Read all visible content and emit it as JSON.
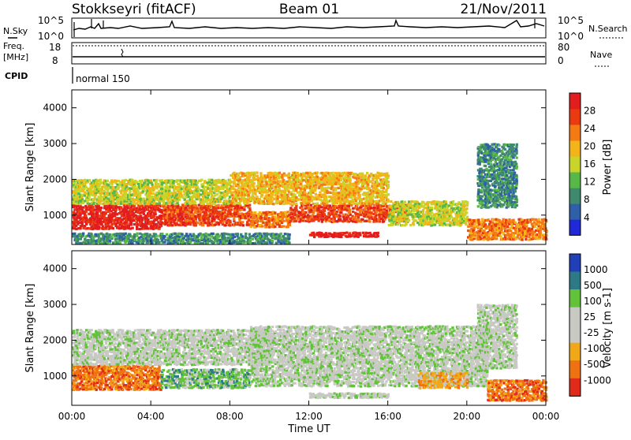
{
  "header": {
    "radar": "Stokkseyri (fitACF)",
    "beam": "Beam 01",
    "date": "21/Nov/2011"
  },
  "summary": {
    "n_sky_label": "N.Sky",
    "n_search_label": "N.Search",
    "freq_label_line1": "Freq.",
    "freq_label_line2": "[MHz]",
    "nave_label": "Nave",
    "cpid_label": "CPID",
    "cpid_value": "normal 150",
    "noise_ticks_left": [
      "10^5",
      "10^0"
    ],
    "noise_ticks_right": [
      "10^5",
      "10^0"
    ],
    "freq_ticks": [
      "18",
      "8"
    ],
    "nave_ticks": [
      "80",
      "0"
    ]
  },
  "chart_data": [
    {
      "type": "heatmap",
      "name": "power-panel",
      "xlabel": "Time UT",
      "ylabel": "Slant Range [km]",
      "x_range_hours": [
        0,
        24
      ],
      "ylim": [
        180,
        4500
      ],
      "x_ticks": [
        "00:00",
        "04:00",
        "08:00",
        "12:00",
        "16:00",
        "20:00",
        "00:00"
      ],
      "y_ticks": [
        1000,
        2000,
        3000,
        4000
      ],
      "colorbar": {
        "label": "Power [dB]",
        "ticks": [
          "28",
          "24",
          "20",
          "16",
          "12",
          "8",
          "4"
        ],
        "colors": [
          "#1f2ad6",
          "#2e5fa8",
          "#3f8a6e",
          "#58b847",
          "#c8d42a",
          "#f2b418",
          "#f47a14",
          "#ea3a12",
          "#e21d1d"
        ]
      },
      "bands": [
        {
          "t0": 0.0,
          "t1": 4.5,
          "r0": 600,
          "r1": 1300,
          "level": 8
        },
        {
          "t0": 4.5,
          "t1": 9.0,
          "r0": 700,
          "r1": 1300,
          "level": 7
        },
        {
          "t0": 9.0,
          "t1": 11.0,
          "r0": 650,
          "r1": 1100,
          "level": 6
        },
        {
          "t0": 11.0,
          "t1": 17.0,
          "r0": 800,
          "r1": 1300,
          "level": 7
        },
        {
          "t0": 12.0,
          "t1": 15.5,
          "r0": 380,
          "r1": 520,
          "level": 8
        },
        {
          "t0": 0.0,
          "t1": 8.0,
          "r0": 1300,
          "r1": 2000,
          "level": 4
        },
        {
          "t0": 8.0,
          "t1": 16.0,
          "r0": 1300,
          "r1": 2200,
          "level": 5
        },
        {
          "t0": 16.0,
          "t1": 20.0,
          "r0": 700,
          "r1": 1400,
          "level": 4
        },
        {
          "t0": 20.0,
          "t1": 24.0,
          "r0": 300,
          "r1": 900,
          "level": 6
        },
        {
          "t0": 20.5,
          "t1": 22.5,
          "r0": 1200,
          "r1": 3000,
          "level": 2
        },
        {
          "t0": 0.0,
          "t1": 11.0,
          "r0": 200,
          "r1": 500,
          "level": 2
        }
      ]
    },
    {
      "type": "heatmap",
      "name": "velocity-panel",
      "xlabel": "Time UT",
      "ylabel": "Slant Range [km]",
      "x_range_hours": [
        0,
        24
      ],
      "ylim": [
        180,
        4500
      ],
      "x_ticks": [
        "00:00",
        "04:00",
        "08:00",
        "12:00",
        "16:00",
        "20:00",
        "00:00"
      ],
      "y_ticks": [
        1000,
        2000,
        3000,
        4000
      ],
      "colorbar": {
        "label": "Velocity [m s-1]",
        "ticks": [
          "1000",
          "500",
          "100",
          "25",
          "-25",
          "-100",
          "-500",
          "-1000"
        ],
        "colors": [
          "#2140b8",
          "#2d7a86",
          "#62c23a",
          "#c9c9c4",
          "#c9c9c4",
          "#f0a818",
          "#ef7212",
          "#e12b1a"
        ]
      },
      "bands": [
        {
          "t0": 0.0,
          "t1": 4.5,
          "r0": 600,
          "r1": 1300,
          "level": 6
        },
        {
          "t0": 4.5,
          "t1": 9.0,
          "r0": 650,
          "r1": 1200,
          "level": 2
        },
        {
          "t0": 0.0,
          "t1": 10.0,
          "r0": 1300,
          "r1": 2300,
          "level": 3
        },
        {
          "t0": 9.0,
          "t1": 21.0,
          "r0": 700,
          "r1": 2400,
          "level": 3
        },
        {
          "t0": 12.0,
          "t1": 16.0,
          "r0": 380,
          "r1": 520,
          "level": 3
        },
        {
          "t0": 17.5,
          "t1": 20.0,
          "r0": 650,
          "r1": 1100,
          "level": 5
        },
        {
          "t0": 21.0,
          "t1": 24.0,
          "r0": 300,
          "r1": 900,
          "level": 6
        },
        {
          "t0": 20.5,
          "t1": 22.5,
          "r0": 1200,
          "r1": 3000,
          "level": 3
        }
      ]
    }
  ]
}
